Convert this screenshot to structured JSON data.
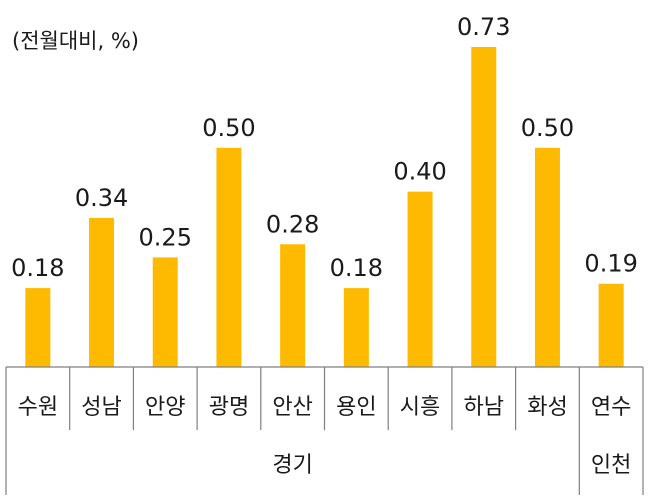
{
  "chart_data": {
    "type": "bar",
    "unit_label": "(전월대비, %)",
    "categories": [
      "수원",
      "성남",
      "안양",
      "광명",
      "안산",
      "용인",
      "시흥",
      "하남",
      "화성",
      "연수"
    ],
    "values": [
      0.18,
      0.34,
      0.25,
      0.5,
      0.28,
      0.18,
      0.4,
      0.73,
      0.5,
      0.19
    ],
    "value_labels": [
      "0.18",
      "0.34",
      "0.25",
      "0.50",
      "0.28",
      "0.18",
      "0.40",
      "0.73",
      "0.50",
      "0.19"
    ],
    "groups": [
      {
        "name": "경기",
        "count": 9
      },
      {
        "name": "인천",
        "count": 1
      }
    ],
    "bar_color": "#FDBA00",
    "axis_color": "#7f7f7f",
    "ylim": [
      0,
      0.73
    ]
  }
}
